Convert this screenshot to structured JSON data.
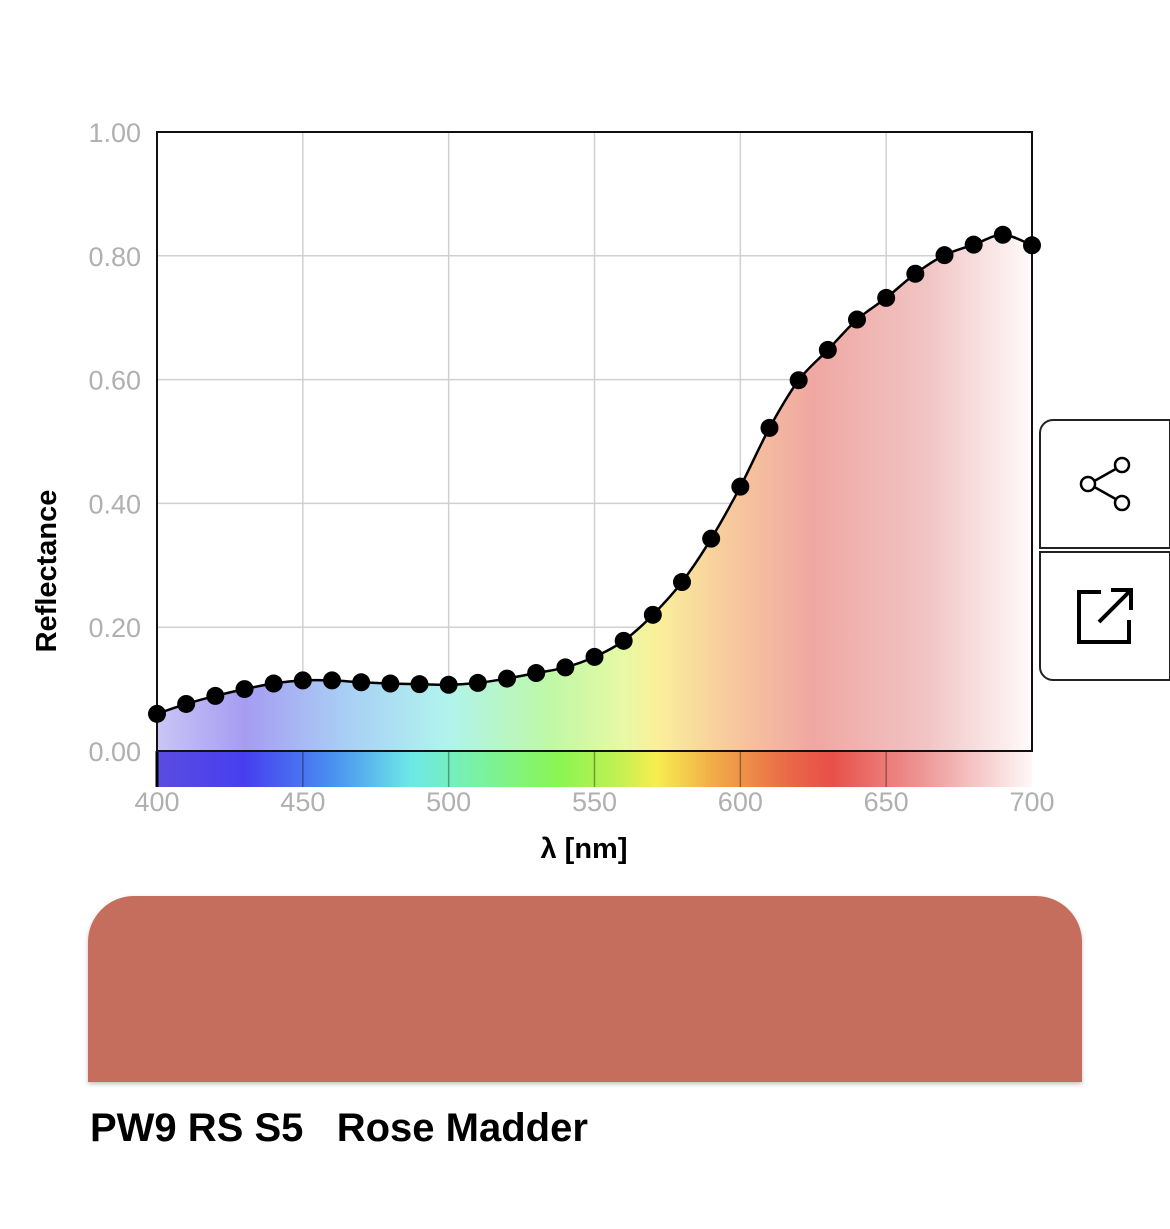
{
  "chart_data": {
    "type": "line",
    "title": "",
    "xlabel": "λ [nm]",
    "ylabel": "Reflectance",
    "xlim": [
      400,
      700
    ],
    "ylim": [
      0,
      1
    ],
    "x_ticks": [
      "400",
      "450",
      "500",
      "550",
      "600",
      "650",
      "700"
    ],
    "y_ticks": [
      "0.00",
      "0.20",
      "0.40",
      "0.60",
      "0.80",
      "1.00"
    ],
    "grid": true,
    "legend": "none",
    "series": [
      {
        "x": [
          400,
          410,
          420,
          430,
          440,
          450,
          460,
          470,
          480,
          490,
          500,
          510,
          520,
          530,
          540,
          550,
          560,
          570,
          580,
          590,
          600,
          610,
          620,
          630,
          640,
          650,
          660,
          670,
          680,
          690,
          700
        ],
        "y": [
          0.06,
          0.076,
          0.089,
          0.1,
          0.109,
          0.114,
          0.114,
          0.111,
          0.109,
          0.108,
          0.107,
          0.11,
          0.117,
          0.126,
          0.135,
          0.152,
          0.178,
          0.22,
          0.273,
          0.343,
          0.427,
          0.522,
          0.599,
          0.648,
          0.697,
          0.732,
          0.771,
          0.801,
          0.818,
          0.834,
          0.817
        ]
      }
    ]
  },
  "colors": {
    "swatch": "#c66e5e",
    "curve": "#000000",
    "grid": "#d0d0d0",
    "tick_text": "#b0b0b0"
  },
  "buttons": {
    "share_icon": "share-icon",
    "open_icon": "external-link-icon"
  },
  "pigment": {
    "label": "PW9 RS S5   Rose Madder"
  }
}
